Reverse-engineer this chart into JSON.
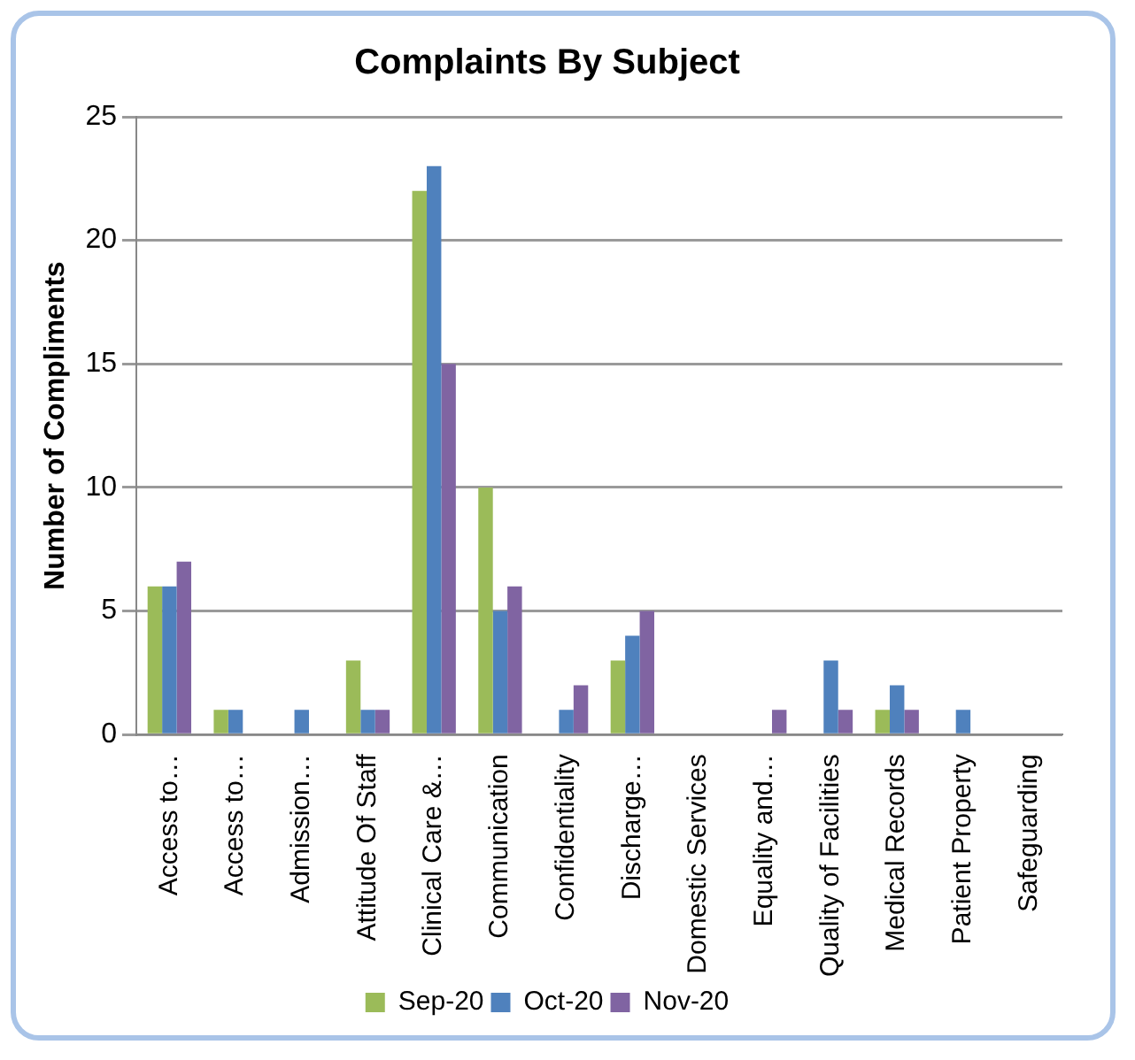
{
  "chart_data": {
    "type": "bar",
    "title": "Complaints By Subject",
    "ylabel": "Number of Compliments",
    "categories": [
      "Access to…",
      "Access to…",
      "Admission…",
      "Attitude Of Staff",
      "Clinical Care &…",
      "Communication",
      "Confidentiality",
      "Discharge…",
      "Domestic Services",
      "Equality and…",
      "Quality of Facilities",
      "Medical Records",
      "Patient Property",
      "Safeguarding"
    ],
    "series": [
      {
        "name": "Sep-20",
        "color": "#9bbb59",
        "values": [
          6,
          1,
          0,
          3,
          22,
          10,
          0,
          3,
          0,
          0,
          0,
          1,
          0,
          0
        ]
      },
      {
        "name": "Oct-20",
        "color": "#4f81bd",
        "values": [
          6,
          1,
          1,
          1,
          23,
          5,
          1,
          4,
          0,
          0,
          3,
          2,
          1,
          0
        ]
      },
      {
        "name": "Nov-20",
        "color": "#8064a2",
        "values": [
          7,
          0,
          0,
          1,
          15,
          6,
          2,
          5,
          0,
          1,
          1,
          1,
          0,
          0
        ]
      }
    ],
    "ylim": [
      0,
      25
    ],
    "yticks": [
      0,
      5,
      10,
      15,
      20,
      25
    ],
    "grid": "y",
    "legend": "bottom"
  }
}
